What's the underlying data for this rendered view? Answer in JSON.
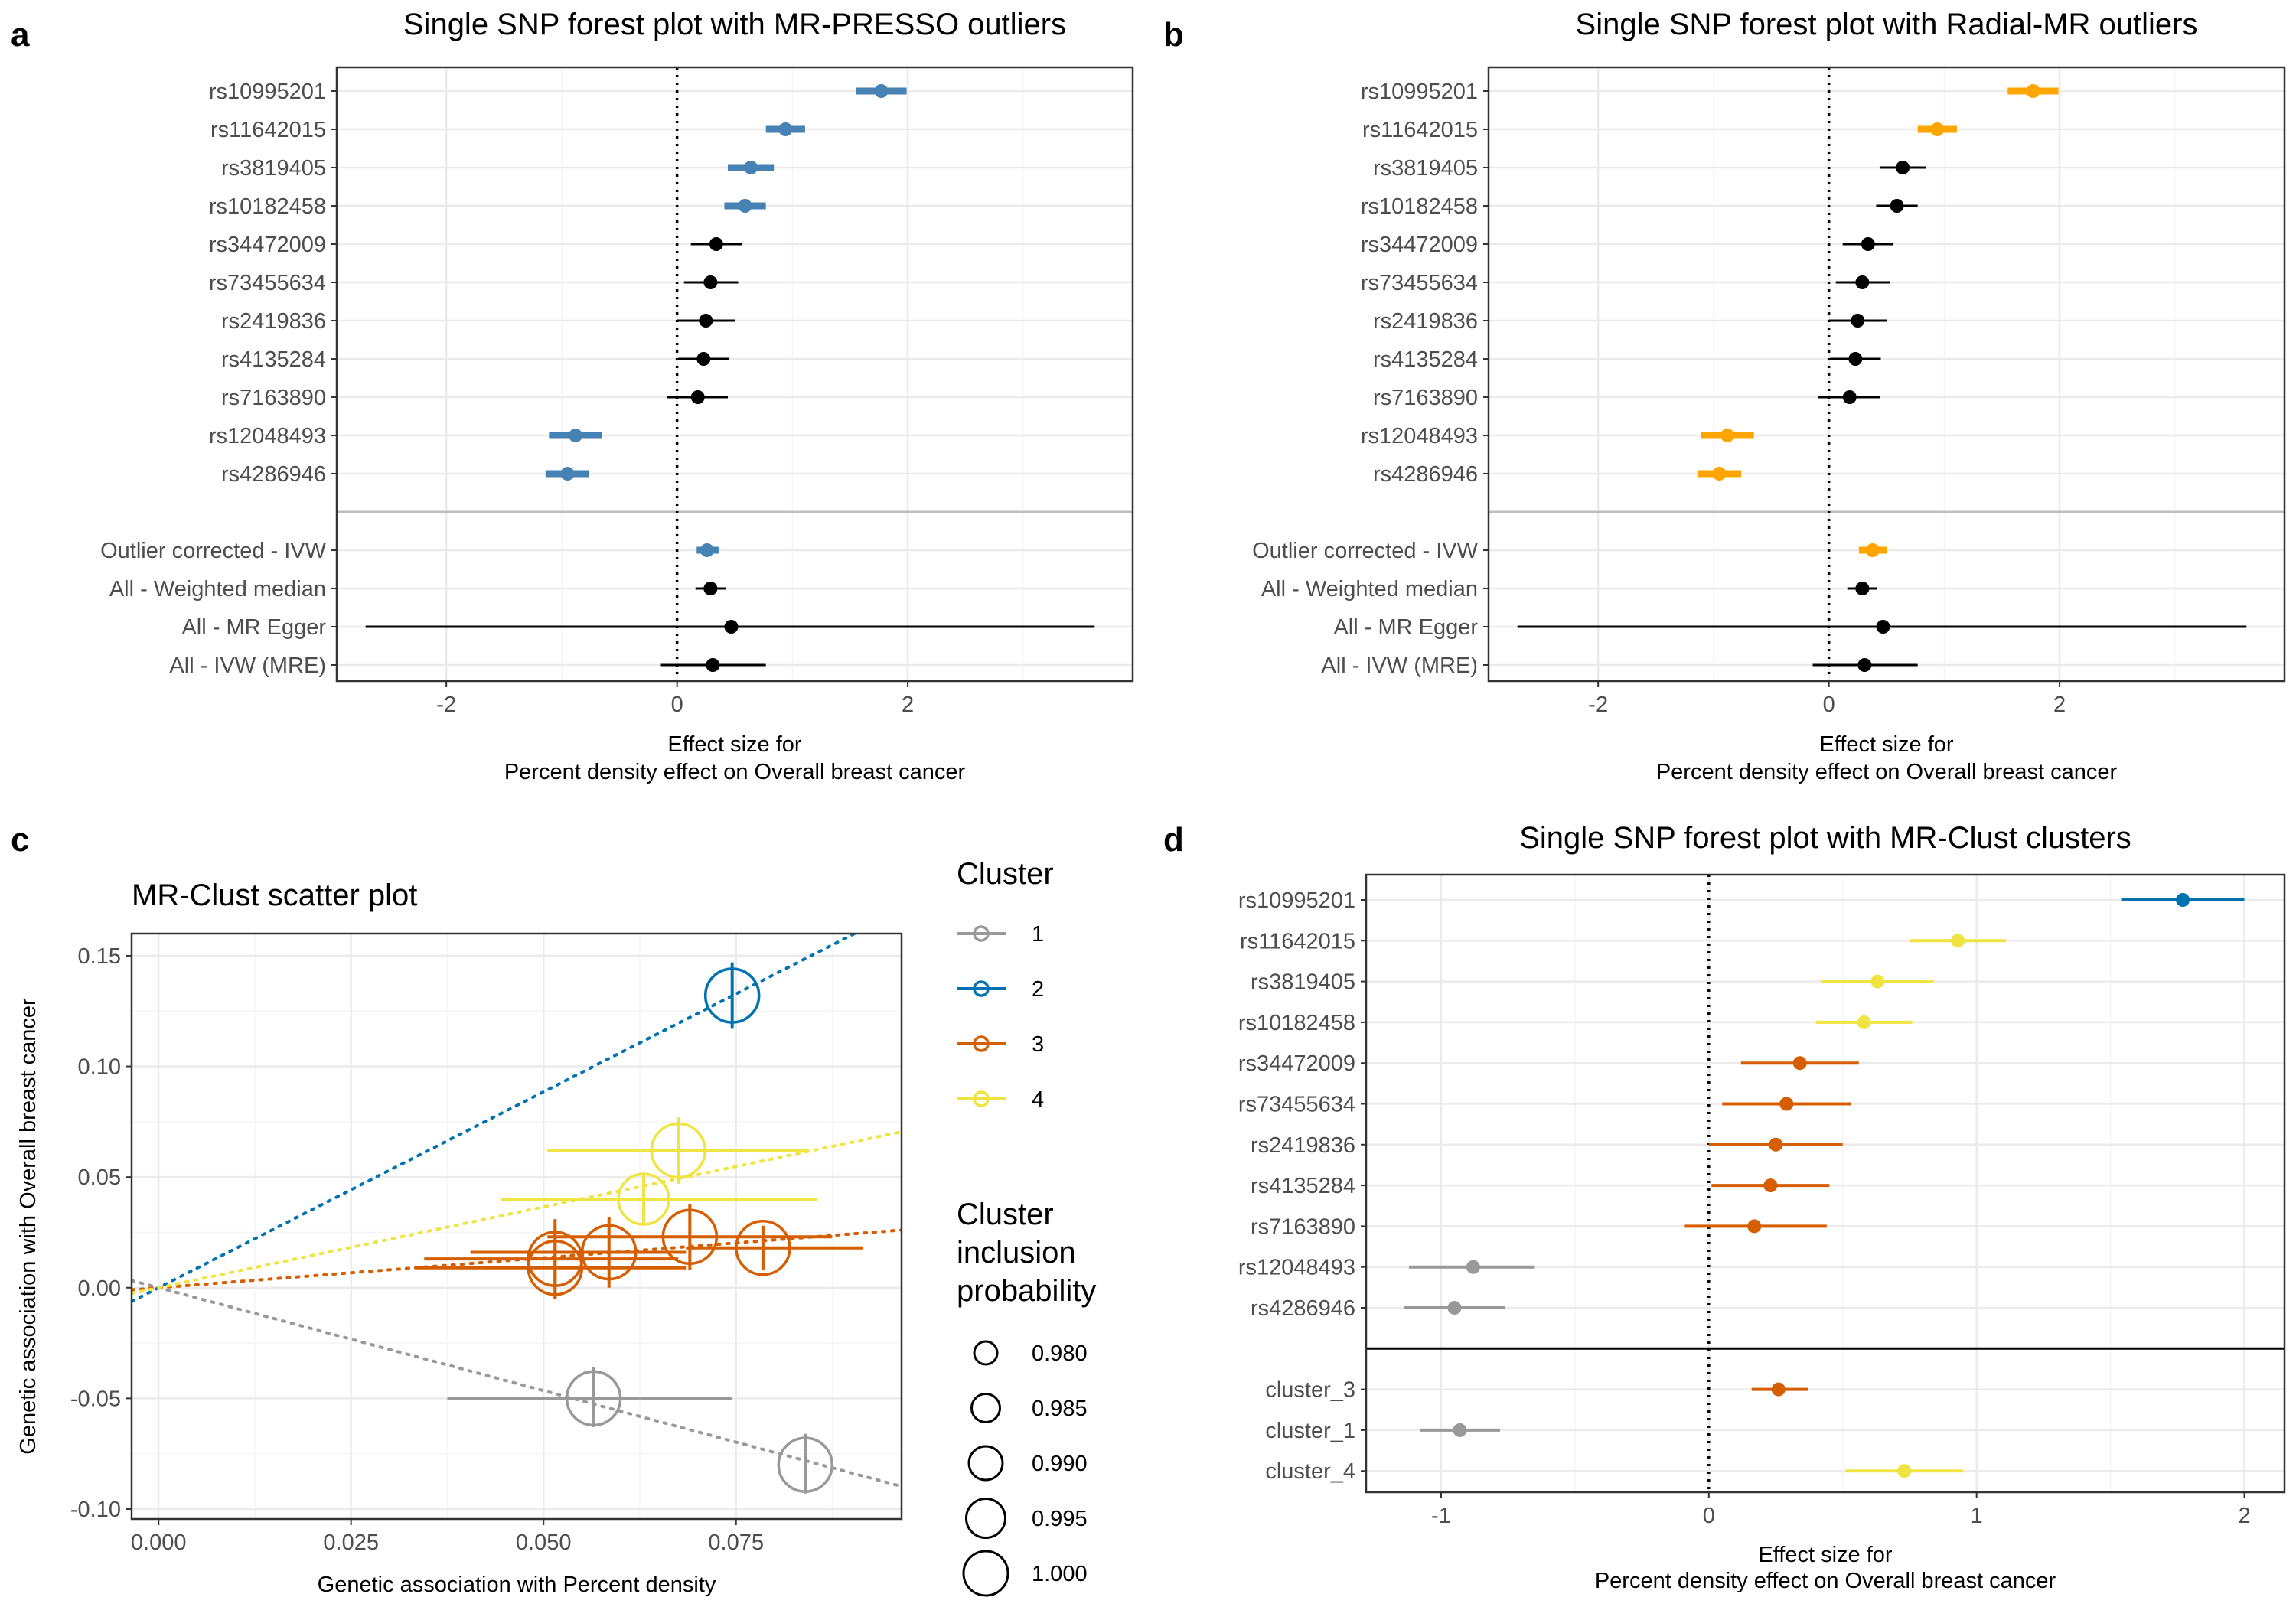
{
  "panels": {
    "a": {
      "label": "a"
    },
    "b": {
      "label": "b"
    },
    "c": {
      "label": "c"
    },
    "d": {
      "label": "d"
    }
  },
  "colors": {
    "presso_outlier": "#4682b4",
    "radial_outlier": "#ffa500",
    "normal": "#000000",
    "cluster_1": "#999999",
    "cluster_2": "#0072b2",
    "cluster_3": "#d55e00",
    "cluster_4": "#f0e442",
    "panel_border": "#333333",
    "grid_major": "#ebebeb",
    "grid_minor": "#f5f5f5",
    "separator_ab": "#bebebe",
    "separator_d": "#000000"
  },
  "chart_data": [
    {
      "id": "a",
      "type": "forest",
      "title": "Single SNP forest plot with MR-PRESSO outliers",
      "xlabel": [
        "Effect size for",
        "Percent density effect on Overall breast cancer"
      ],
      "xlim": [
        -2.95,
        3.95
      ],
      "xticks": [
        -2,
        0,
        2
      ],
      "separator_after": 11,
      "rows": [
        {
          "label": "rs10995201",
          "est": 1.77,
          "lo": 1.55,
          "hi": 1.99,
          "group": "outlier"
        },
        {
          "label": "rs11642015",
          "est": 0.94,
          "lo": 0.77,
          "hi": 1.11,
          "group": "outlier"
        },
        {
          "label": "rs3819405",
          "est": 0.64,
          "lo": 0.44,
          "hi": 0.84,
          "group": "outlier"
        },
        {
          "label": "rs10182458",
          "est": 0.59,
          "lo": 0.41,
          "hi": 0.77,
          "group": "outlier"
        },
        {
          "label": "rs34472009",
          "est": 0.34,
          "lo": 0.12,
          "hi": 0.56,
          "group": "normal"
        },
        {
          "label": "rs73455634",
          "est": 0.29,
          "lo": 0.06,
          "hi": 0.53,
          "group": "normal"
        },
        {
          "label": "rs2419836",
          "est": 0.25,
          "lo": 0.0,
          "hi": 0.5,
          "group": "normal"
        },
        {
          "label": "rs4135284",
          "est": 0.23,
          "lo": 0.01,
          "hi": 0.45,
          "group": "normal"
        },
        {
          "label": "rs7163890",
          "est": 0.18,
          "lo": -0.09,
          "hi": 0.44,
          "group": "normal"
        },
        {
          "label": "rs12048493",
          "est": -0.88,
          "lo": -1.11,
          "hi": -0.65,
          "group": "outlier"
        },
        {
          "label": "rs4286946",
          "est": -0.95,
          "lo": -1.14,
          "hi": -0.76,
          "group": "outlier"
        },
        {
          "label": "Outlier corrected - IVW",
          "est": 0.26,
          "lo": 0.17,
          "hi": 0.36,
          "group": "outlier"
        },
        {
          "label": "All - Weighted median",
          "est": 0.29,
          "lo": 0.16,
          "hi": 0.42,
          "group": "normal"
        },
        {
          "label": "All - MR Egger",
          "est": 0.47,
          "lo": -2.7,
          "hi": 3.62,
          "group": "normal"
        },
        {
          "label": "All - IVW (MRE)",
          "est": 0.31,
          "lo": -0.14,
          "hi": 0.77,
          "group": "normal"
        }
      ]
    },
    {
      "id": "b",
      "type": "forest",
      "title": "Single SNP forest plot with Radial-MR outliers",
      "xlabel": [
        "Effect size for",
        "Percent density effect on Overall breast cancer"
      ],
      "xlim": [
        -2.95,
        3.95
      ],
      "xticks": [
        -2,
        0,
        2
      ],
      "separator_after": 11,
      "rows": [
        {
          "label": "rs10995201",
          "est": 1.77,
          "lo": 1.55,
          "hi": 1.99,
          "group": "outlier"
        },
        {
          "label": "rs11642015",
          "est": 0.94,
          "lo": 0.77,
          "hi": 1.11,
          "group": "outlier"
        },
        {
          "label": "rs3819405",
          "est": 0.64,
          "lo": 0.44,
          "hi": 0.84,
          "group": "normal"
        },
        {
          "label": "rs10182458",
          "est": 0.59,
          "lo": 0.41,
          "hi": 0.77,
          "group": "normal"
        },
        {
          "label": "rs34472009",
          "est": 0.34,
          "lo": 0.12,
          "hi": 0.56,
          "group": "normal"
        },
        {
          "label": "rs73455634",
          "est": 0.29,
          "lo": 0.06,
          "hi": 0.53,
          "group": "normal"
        },
        {
          "label": "rs2419836",
          "est": 0.25,
          "lo": 0.0,
          "hi": 0.5,
          "group": "normal"
        },
        {
          "label": "rs4135284",
          "est": 0.23,
          "lo": 0.01,
          "hi": 0.45,
          "group": "normal"
        },
        {
          "label": "rs7163890",
          "est": 0.18,
          "lo": -0.09,
          "hi": 0.44,
          "group": "normal"
        },
        {
          "label": "rs12048493",
          "est": -0.88,
          "lo": -1.11,
          "hi": -0.65,
          "group": "outlier"
        },
        {
          "label": "rs4286946",
          "est": -0.95,
          "lo": -1.14,
          "hi": -0.76,
          "group": "outlier"
        },
        {
          "label": "Outlier corrected - IVW",
          "est": 0.38,
          "lo": 0.26,
          "hi": 0.5,
          "group": "outlier"
        },
        {
          "label": "All - Weighted median",
          "est": 0.29,
          "lo": 0.16,
          "hi": 0.42,
          "group": "normal"
        },
        {
          "label": "All - MR Egger",
          "est": 0.47,
          "lo": -2.7,
          "hi": 3.62,
          "group": "normal"
        },
        {
          "label": "All - IVW (MRE)",
          "est": 0.31,
          "lo": -0.14,
          "hi": 0.77,
          "group": "normal"
        }
      ]
    },
    {
      "id": "c",
      "type": "scatter",
      "title": "MR-Clust scatter plot",
      "xlabel": "Genetic association with Percent density",
      "ylabel": "Genetic association with Overall breast cancer",
      "xlim": [
        -0.0035,
        0.0965
      ],
      "ylim": [
        -0.1045,
        0.16
      ],
      "xticks": [
        "0.000",
        "0.025",
        "0.050",
        "0.075"
      ],
      "yticks": [
        "-0.10",
        "-0.05",
        "0.00",
        "0.05",
        "0.10",
        "0.15"
      ],
      "slopes": [
        {
          "cluster": "1",
          "slope": -0.93
        },
        {
          "cluster": "2",
          "slope": 1.77
        },
        {
          "cluster": "3",
          "slope": 0.27
        },
        {
          "cluster": "4",
          "slope": 0.73
        }
      ],
      "points": [
        {
          "cluster": "2",
          "x": 0.0745,
          "y": 0.132,
          "xlo": 0.0745,
          "xhi": 0.0745,
          "ylo": 0.117,
          "yhi": 0.147,
          "prob": 1.0
        },
        {
          "cluster": "4",
          "x": 0.0675,
          "y": 0.062,
          "xlo": 0.0505,
          "xhi": 0.0845,
          "ylo": 0.047,
          "yhi": 0.077,
          "prob": 1.0
        },
        {
          "cluster": "4",
          "x": 0.063,
          "y": 0.04,
          "xlo": 0.0445,
          "xhi": 0.0855,
          "ylo": 0.028,
          "yhi": 0.052,
          "prob": 0.995
        },
        {
          "cluster": "3",
          "x": 0.069,
          "y": 0.023,
          "xlo": 0.0505,
          "xhi": 0.0875,
          "ylo": 0.008,
          "yhi": 0.038,
          "prob": 1.0
        },
        {
          "cluster": "3",
          "x": 0.0785,
          "y": 0.018,
          "xlo": 0.0685,
          "xhi": 0.0915,
          "ylo": 0.008,
          "yhi": 0.028,
          "prob": 1.0
        },
        {
          "cluster": "3",
          "x": 0.0585,
          "y": 0.016,
          "xlo": 0.0405,
          "xhi": 0.0685,
          "ylo": 0.0,
          "yhi": 0.032,
          "prob": 1.0
        },
        {
          "cluster": "3",
          "x": 0.0515,
          "y": 0.013,
          "xlo": 0.0345,
          "xhi": 0.0675,
          "ylo": -0.005,
          "yhi": 0.031,
          "prob": 1.0
        },
        {
          "cluster": "3",
          "x": 0.0515,
          "y": 0.009,
          "xlo": 0.0335,
          "xhi": 0.0685,
          "ylo": -0.005,
          "yhi": 0.023,
          "prob": 1.0
        },
        {
          "cluster": "1",
          "x": 0.0565,
          "y": -0.05,
          "xlo": 0.0375,
          "xhi": 0.0745,
          "ylo": -0.063,
          "yhi": -0.036,
          "prob": 1.0
        },
        {
          "cluster": "1",
          "x": 0.084,
          "y": -0.08,
          "xlo": 0.084,
          "xhi": 0.084,
          "ylo": -0.093,
          "yhi": -0.066,
          "prob": 1.0
        }
      ],
      "legend_cluster": {
        "title": "Cluster",
        "items": [
          "1",
          "2",
          "3",
          "4"
        ]
      },
      "legend_size": {
        "title": [
          "Cluster",
          "inclusion",
          "probability"
        ],
        "items": [
          "0.980",
          "0.985",
          "0.990",
          "0.995",
          "1.000"
        ]
      }
    },
    {
      "id": "d",
      "type": "forest",
      "title": "Single SNP forest plot with MR-Clust clusters",
      "xlabel": [
        "Effect size for",
        "Percent density effect on Overall breast cancer"
      ],
      "xlim": [
        -1.28,
        2.15
      ],
      "xticks": [
        -1,
        0,
        1,
        2
      ],
      "separator_after": 11,
      "rows": [
        {
          "label": "rs10995201",
          "est": 1.77,
          "lo": 1.54,
          "hi": 2.0,
          "group": "2"
        },
        {
          "label": "rs11642015",
          "est": 0.93,
          "lo": 0.75,
          "hi": 1.11,
          "group": "4"
        },
        {
          "label": "rs3819405",
          "est": 0.63,
          "lo": 0.42,
          "hi": 0.84,
          "group": "4"
        },
        {
          "label": "rs10182458",
          "est": 0.58,
          "lo": 0.4,
          "hi": 0.76,
          "group": "4"
        },
        {
          "label": "rs34472009",
          "est": 0.34,
          "lo": 0.12,
          "hi": 0.56,
          "group": "3"
        },
        {
          "label": "rs73455634",
          "est": 0.29,
          "lo": 0.05,
          "hi": 0.53,
          "group": "3"
        },
        {
          "label": "rs2419836",
          "est": 0.25,
          "lo": 0.0,
          "hi": 0.5,
          "group": "3"
        },
        {
          "label": "rs4135284",
          "est": 0.23,
          "lo": 0.01,
          "hi": 0.45,
          "group": "3"
        },
        {
          "label": "rs7163890",
          "est": 0.17,
          "lo": -0.09,
          "hi": 0.44,
          "group": "3"
        },
        {
          "label": "rs12048493",
          "est": -0.88,
          "lo": -1.12,
          "hi": -0.65,
          "group": "1"
        },
        {
          "label": "rs4286946",
          "est": -0.95,
          "lo": -1.14,
          "hi": -0.76,
          "group": "1"
        },
        {
          "label": "cluster_3",
          "est": 0.26,
          "lo": 0.16,
          "hi": 0.37,
          "group": "3"
        },
        {
          "label": "cluster_1",
          "est": -0.93,
          "lo": -1.08,
          "hi": -0.78,
          "group": "1"
        },
        {
          "label": "cluster_4",
          "est": 0.73,
          "lo": 0.51,
          "hi": 0.95,
          "group": "4"
        }
      ]
    }
  ]
}
